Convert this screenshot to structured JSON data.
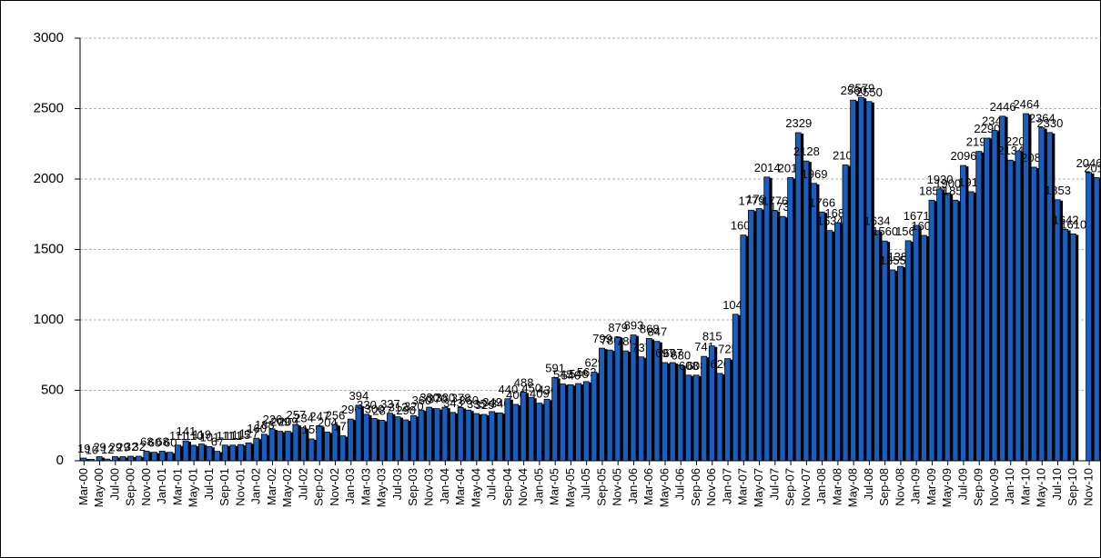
{
  "chart_data": {
    "type": "bar",
    "categories": [
      "Mar-00",
      null,
      "May-00",
      null,
      "Jul-00",
      null,
      "Sep-00",
      null,
      "Nov-00",
      null,
      "Jan-01",
      null,
      "Mar-01",
      null,
      "May-01",
      null,
      "Jul-01",
      null,
      "Sep-01",
      null,
      "Nov-01",
      null,
      "Jan-02",
      null,
      "Mar-02",
      null,
      "May-02",
      null,
      "Jul-02",
      null,
      "Sep-02",
      null,
      "Nov-02",
      null,
      "Jan-03",
      null,
      "Mar-03",
      null,
      "May-03",
      null,
      "Jul-03",
      null,
      "Sep-03",
      null,
      "Nov-03",
      null,
      "Jan-04",
      null,
      "Mar-04",
      null,
      "May-04",
      null,
      "Jul-04",
      null,
      "Sep-04",
      null,
      "Nov-04",
      null,
      "Jan-05",
      null,
      "Mar-05",
      null,
      "May-05",
      null,
      "Jul-05",
      null,
      "Sep-05",
      null,
      "Nov-05",
      null,
      "Jan-06",
      null,
      "Mar-06",
      null,
      "May-06",
      null,
      "Jul-06",
      null,
      "Sep-06",
      null,
      "Nov-06",
      null,
      "Jan-07",
      null,
      "Mar-07",
      null,
      "May-07",
      null,
      "Jul-07",
      null,
      "Sep-07",
      null,
      "Nov-07",
      null,
      "Jan-08",
      null,
      "Mar-08",
      null,
      "May-08",
      null,
      "Jul-08",
      null,
      "Sep-08",
      null,
      "Nov-08",
      null,
      "Jan-09",
      null,
      "Mar-09",
      null,
      "May-09",
      null,
      "Jul-09",
      null,
      "Sep-09",
      null,
      "Nov-09",
      null,
      "Jan-10",
      null,
      "Mar-10",
      null,
      "May-10",
      null,
      "Jul-10",
      null,
      "Sep-10",
      null,
      "Nov-10",
      null
    ],
    "values": [
      19,
      10,
      29,
      12,
      29,
      29,
      32,
      32,
      68,
      60,
      68,
      60,
      111,
      141,
      110,
      119,
      101,
      67,
      111,
      111,
      115,
      127,
      160,
      188,
      226,
      209,
      209,
      257,
      234,
      155,
      247,
      204,
      256,
      177,
      296,
      394,
      330,
      300,
      287,
      337,
      312,
      290,
      320,
      360,
      380,
      370,
      380,
      343,
      378,
      360,
      335,
      329,
      349,
      340,
      440,
      400,
      488,
      450,
      409,
      436,
      591,
      545,
      540,
      548,
      562,
      629,
      799,
      786,
      879,
      780,
      893,
      737,
      868,
      847,
      697,
      697,
      680,
      608,
      608,
      741,
      815,
      620,
      725,
      1040,
      1602,
      1779,
      1790,
      2014,
      1776,
      1734,
      2010,
      2329,
      2128,
      1969,
      1766,
      1634,
      1689,
      2100,
      2560,
      2579,
      2550,
      1634,
      1560,
      1355,
      1380,
      1562,
      1671,
      1600,
      1850,
      1930,
      1900,
      1850,
      2096,
      1910,
      2196,
      2290,
      2345,
      2446,
      2134,
      2200,
      2464,
      2084,
      2364,
      2330,
      1853,
      1642,
      1610,
      null,
      2046,
      2010
    ],
    "color": "#1a5fbf",
    "ylim": [
      0,
      3000
    ],
    "yticks": [
      0,
      500,
      1000,
      1500,
      2000,
      2500,
      3000
    ],
    "grid": true
  }
}
